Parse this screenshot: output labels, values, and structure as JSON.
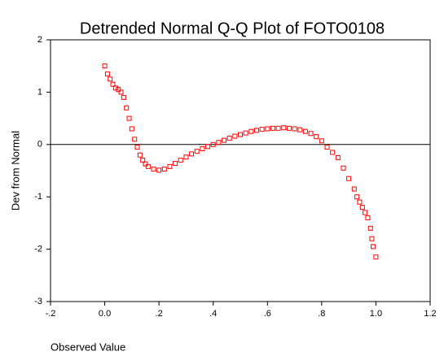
{
  "chart_data": {
    "type": "scatter",
    "title": "Detrended Normal Q-Q Plot of FOTO0108",
    "x_label": "Observed Value",
    "y_label": "Dev from Normal",
    "color": "#ff0000",
    "x": [
      0.0,
      0.01,
      0.02,
      0.03,
      0.04,
      0.05,
      0.06,
      0.07,
      0.08,
      0.09,
      0.1,
      0.11,
      0.12,
      0.13,
      0.14,
      0.15,
      0.16,
      0.18,
      0.2,
      0.22,
      0.24,
      0.26,
      0.28,
      0.3,
      0.32,
      0.34,
      0.36,
      0.38,
      0.4,
      0.42,
      0.44,
      0.46,
      0.48,
      0.5,
      0.52,
      0.54,
      0.56,
      0.58,
      0.6,
      0.62,
      0.64,
      0.66,
      0.68,
      0.7,
      0.72,
      0.74,
      0.76,
      0.78,
      0.8,
      0.82,
      0.84,
      0.86,
      0.88,
      0.9,
      0.92,
      0.93,
      0.94,
      0.95,
      0.96,
      0.97,
      0.98,
      0.985,
      0.99,
      1.0
    ],
    "values": [
      1.5,
      1.35,
      1.25,
      1.15,
      1.08,
      1.05,
      1.0,
      0.9,
      0.7,
      0.5,
      0.3,
      0.1,
      -0.05,
      -0.2,
      -0.3,
      -0.37,
      -0.42,
      -0.47,
      -0.49,
      -0.47,
      -0.42,
      -0.36,
      -0.3,
      -0.24,
      -0.18,
      -0.13,
      -0.08,
      -0.04,
      0.0,
      0.04,
      0.08,
      0.12,
      0.16,
      0.19,
      0.22,
      0.25,
      0.27,
      0.29,
      0.3,
      0.31,
      0.31,
      0.32,
      0.31,
      0.3,
      0.28,
      0.25,
      0.21,
      0.15,
      0.07,
      -0.05,
      -0.15,
      -0.25,
      -0.45,
      -0.65,
      -0.85,
      -1.0,
      -1.1,
      -1.2,
      -1.3,
      -1.4,
      -1.6,
      -1.8,
      -1.95,
      -2.15
    ],
    "xlim": [
      -0.2,
      1.2
    ],
    "xticks": [
      {
        "value": -0.2,
        "label": "-.2"
      },
      {
        "value": 0,
        "label": "0.0"
      },
      {
        "value": 0.2,
        "label": ".2"
      },
      {
        "value": 0.4,
        "label": ".4"
      },
      {
        "value": 0.6,
        "label": ".6"
      },
      {
        "value": 0.8,
        "label": ".8"
      },
      {
        "value": 1.0,
        "label": "1.0"
      },
      {
        "value": 1.2,
        "label": "1.2"
      }
    ],
    "ylim": [
      -3,
      2
    ],
    "yticks": [
      -3,
      -2,
      -1,
      0,
      1,
      2
    ],
    "reference_line": 0
  }
}
